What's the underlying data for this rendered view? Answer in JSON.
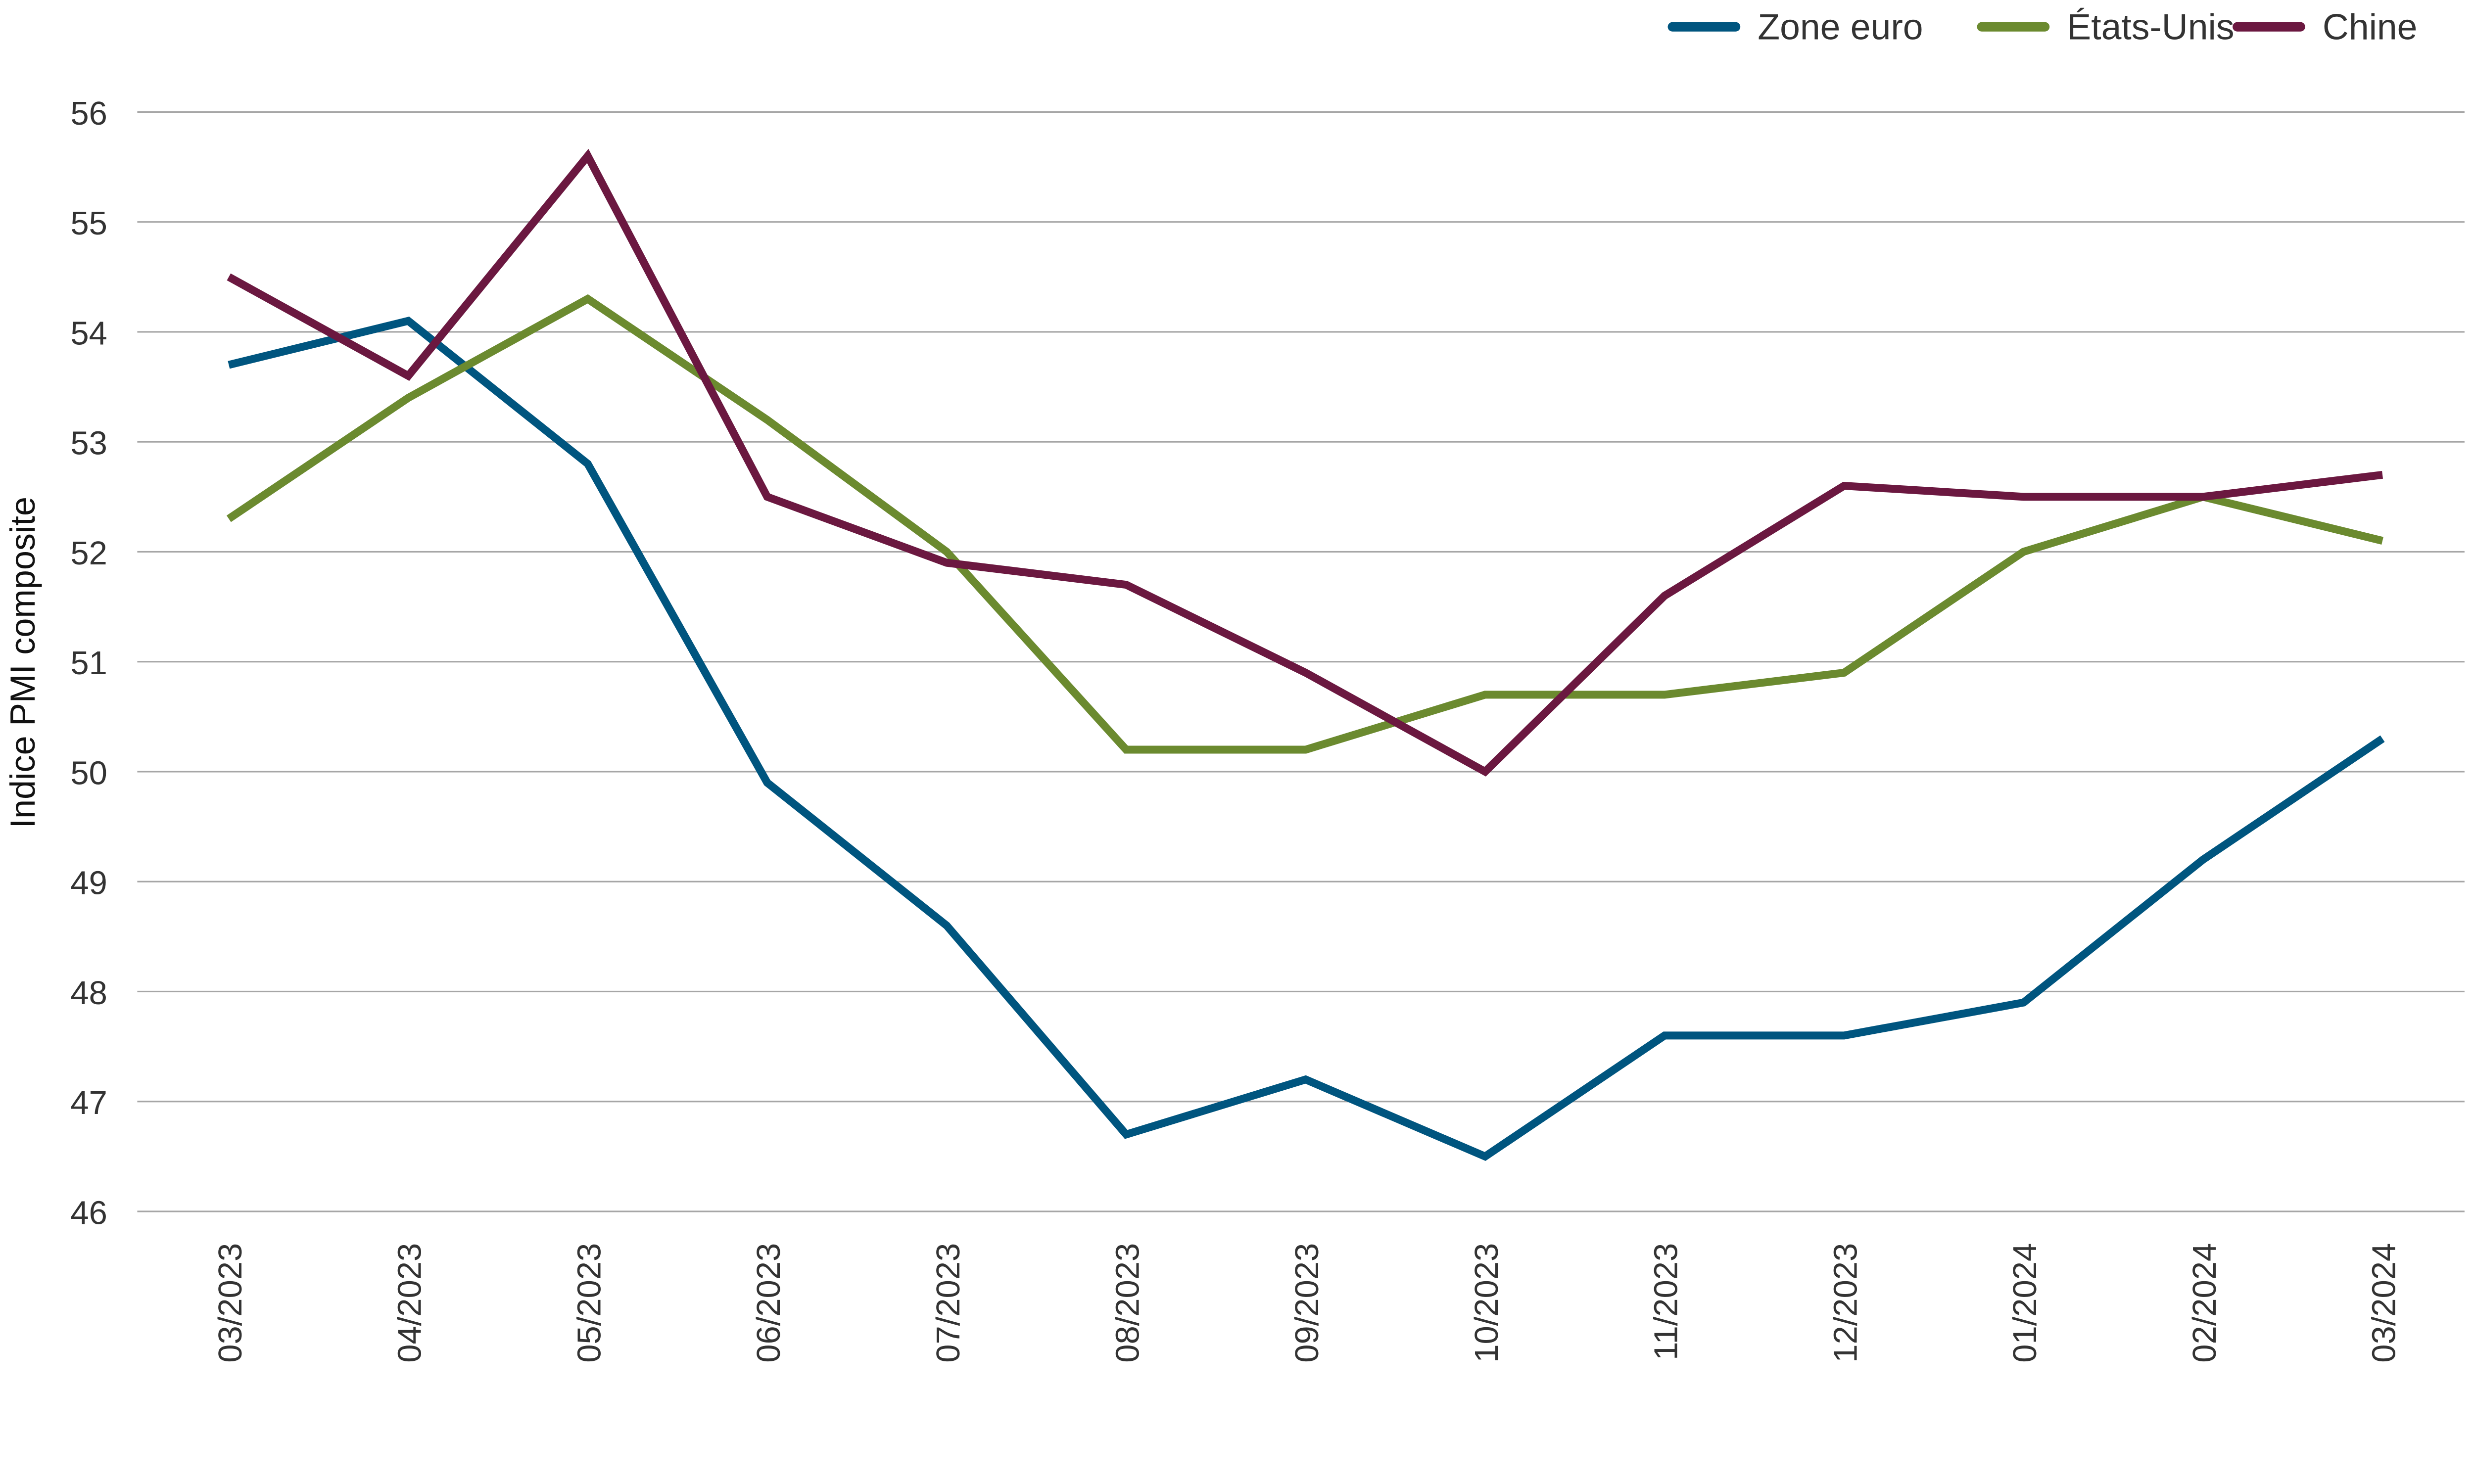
{
  "chart_data": {
    "type": "line",
    "title": "",
    "xlabel": "",
    "ylabel": "Indice PMI composite",
    "ylim": [
      46,
      56
    ],
    "yticks": [
      "46",
      "47",
      "48",
      "49",
      "50",
      "51",
      "52",
      "53",
      "54",
      "55",
      "56"
    ],
    "grid": true,
    "legend_position": "top-right",
    "categories": [
      "03/2023",
      "04/2023",
      "05/2023",
      "06/2023",
      "07/2023",
      "08/2023",
      "09/2023",
      "10/2023",
      "11/2023",
      "12/2023",
      "01/2024",
      "02/2024",
      "03/2024"
    ],
    "series": [
      {
        "name": "Zone euro",
        "color": "#00557f",
        "values": [
          53.7,
          54.1,
          52.8,
          49.9,
          48.6,
          46.7,
          47.2,
          46.5,
          47.6,
          47.6,
          47.9,
          49.2,
          50.3
        ]
      },
      {
        "name": "États-Unis",
        "color": "#6b8a2f",
        "values": [
          52.3,
          53.4,
          54.3,
          53.2,
          52.0,
          50.2,
          50.2,
          50.7,
          50.7,
          50.9,
          52.0,
          52.5,
          52.1
        ]
      },
      {
        "name": "Chine",
        "color": "#6b1840",
        "values": [
          54.5,
          53.6,
          55.6,
          52.5,
          51.9,
          51.7,
          50.9,
          50.0,
          51.6,
          52.6,
          52.5,
          52.5,
          52.7
        ]
      }
    ]
  }
}
